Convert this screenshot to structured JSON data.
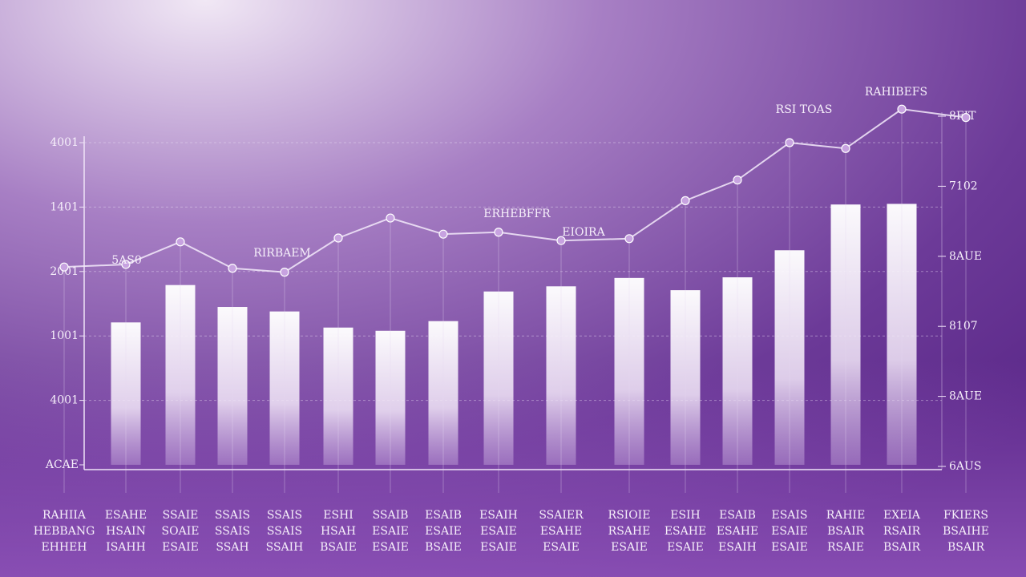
{
  "chart_data": {
    "type": "bar-line",
    "categories": [
      [
        "RAHIIA",
        "HEBBANG",
        "EHHEH"
      ],
      [
        "ESAHE",
        "HSAIN",
        "ISAHH"
      ],
      [
        "SSAIE",
        "SOAIE",
        "ESAIE"
      ],
      [
        "SSAIS",
        "SSAIS",
        "SSAH"
      ],
      [
        "SSAIS",
        "SSAIS",
        "SSAIH"
      ],
      [
        "ESHI",
        "HSAH",
        "BSAIE"
      ],
      [
        "SSAIB",
        "ESAIE",
        "ESAIE"
      ],
      [
        "ESAIB",
        "ESAIE",
        "BSAIE"
      ],
      [
        "ESAIH",
        "ESAIE",
        "ESAIE"
      ],
      [
        "SSAIER",
        "ESAHE",
        "ESAIE"
      ],
      [
        "RSIOIE",
        "RSAHE",
        "ESAIE"
      ],
      [
        "ESIH",
        "ESAHE",
        "ESAIE"
      ],
      [
        "ESAIB",
        "ESAHE",
        "ESAIH"
      ],
      [
        "ESAIS",
        "ESAIE",
        "ESAIE"
      ],
      [
        "RAHIE",
        "BSAIR",
        "RSAIE"
      ],
      [
        "EXEIA",
        "RSAIR",
        "BSAIR"
      ],
      [
        "FKIERS",
        "BSAIHE",
        "BSAIR"
      ]
    ],
    "series": [
      {
        "type": "bar",
        "color": "#ffffff",
        "values": [
          null,
          2.21,
          2.79,
          2.45,
          2.38,
          2.13,
          2.08,
          2.23,
          2.69,
          2.77,
          2.9,
          2.71,
          2.91,
          3.33,
          4.04,
          4.05,
          null
        ]
      },
      {
        "type": "line",
        "color": "#f3eafa",
        "values": [
          3.07,
          3.11,
          3.46,
          3.05,
          2.99,
          3.52,
          3.83,
          3.58,
          3.61,
          3.48,
          3.51,
          4.1,
          4.42,
          5.0,
          4.91,
          5.52,
          5.39
        ]
      }
    ],
    "annotations": [
      "5AS0",
      "RIRBAEM",
      "ERHEBFFR",
      "EIOIRA",
      "RSI TOAS",
      "RAHIBEFS"
    ],
    "ylim": [
      0,
      5
    ],
    "yticks": [
      {
        "value": 0,
        "label": "ACAE"
      },
      {
        "value": 1,
        "label": "4001"
      },
      {
        "value": 2,
        "label": "1001"
      },
      {
        "value": 3,
        "label": "2001"
      },
      {
        "value": 4,
        "label": "1401"
      },
      {
        "value": 5,
        "label": "4001"
      }
    ],
    "y2lim": [
      0,
      5
    ],
    "y2ticks": [
      {
        "value": 0,
        "label": "6AUS"
      },
      {
        "value": 1,
        "label": "8AUE"
      },
      {
        "value": 2,
        "label": "8107"
      },
      {
        "value": 3,
        "label": "8AUE"
      },
      {
        "value": 4,
        "label": "7102"
      },
      {
        "value": 5,
        "label": "8FIT"
      }
    ],
    "grid": true
  }
}
